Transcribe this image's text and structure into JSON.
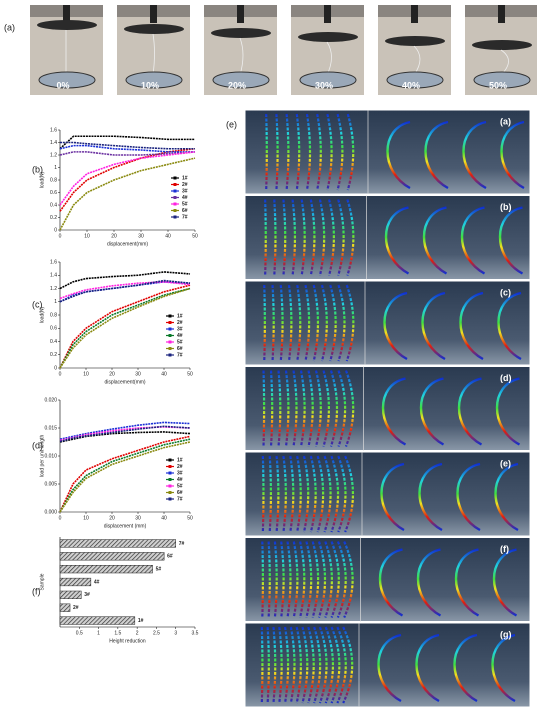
{
  "photos": {
    "label": "(a)",
    "captions": [
      "0%",
      "10%",
      "20%",
      "30%",
      "40%",
      "50%"
    ]
  },
  "simulation": {
    "label": "(e)",
    "panels": [
      "(a)",
      "(b)",
      "(c)",
      "(d)",
      "(e)",
      "(f)",
      "(g)"
    ]
  },
  "chart_data": [
    {
      "type": "line",
      "label": "(b)",
      "xlabel": "displacement(mm)",
      "ylabel": "load(N)",
      "x": [
        0,
        5,
        10,
        20,
        30,
        40,
        50
      ],
      "xlim": [
        0,
        50
      ],
      "ylim": [
        0,
        1.6
      ],
      "xticks": [
        0,
        10,
        20,
        30,
        40,
        50
      ],
      "yticks": [
        0,
        0.2,
        0.4,
        0.6,
        0.8,
        1,
        1.2,
        1.4,
        1.6
      ],
      "series": [
        {
          "name": "1#",
          "color": "#000000",
          "values": [
            1.3,
            1.5,
            1.5,
            1.5,
            1.48,
            1.45,
            1.45
          ]
        },
        {
          "name": "2#",
          "color": "#e00000",
          "values": [
            0.3,
            0.6,
            0.8,
            1.0,
            1.15,
            1.25,
            1.3
          ]
        },
        {
          "name": "3#",
          "color": "#1a2fd6",
          "values": [
            1.3,
            1.35,
            1.35,
            1.3,
            1.28,
            1.25,
            1.25
          ]
        },
        {
          "name": "4#",
          "color": "#6a2fa0",
          "values": [
            1.2,
            1.25,
            1.25,
            1.2,
            1.2,
            1.22,
            1.25
          ]
        },
        {
          "name": "5#",
          "color": "#ff20e0",
          "values": [
            0.4,
            0.7,
            0.9,
            1.05,
            1.15,
            1.2,
            1.25
          ]
        },
        {
          "name": "6#",
          "color": "#8a8a10",
          "values": [
            0.0,
            0.4,
            0.6,
            0.8,
            0.95,
            1.05,
            1.15
          ]
        },
        {
          "name": "7#",
          "color": "#1a237e",
          "values": [
            1.4,
            1.4,
            1.38,
            1.35,
            1.32,
            1.3,
            1.3
          ]
        }
      ]
    },
    {
      "type": "line",
      "label": "(c)",
      "xlabel": "displacement(mm)",
      "ylabel": "load(N)",
      "x": [
        0,
        5,
        10,
        20,
        30,
        40,
        50
      ],
      "xlim": [
        0,
        50
      ],
      "ylim": [
        0,
        1.6
      ],
      "xticks": [
        0,
        10,
        20,
        30,
        40,
        50
      ],
      "yticks": [
        0,
        0.2,
        0.4,
        0.6,
        0.8,
        1,
        1.2,
        1.4,
        1.6
      ],
      "series": [
        {
          "name": "1#",
          "color": "#000000",
          "values": [
            1.2,
            1.3,
            1.35,
            1.38,
            1.4,
            1.45,
            1.42
          ]
        },
        {
          "name": "2#",
          "color": "#e00000",
          "values": [
            0,
            0.4,
            0.6,
            0.85,
            1.0,
            1.15,
            1.25
          ]
        },
        {
          "name": "3#",
          "color": "#1a2fd6",
          "values": [
            1.0,
            1.1,
            1.15,
            1.2,
            1.25,
            1.3,
            1.28
          ]
        },
        {
          "name": "4#",
          "color": "#0a7a2a",
          "values": [
            0,
            0.35,
            0.55,
            0.8,
            0.95,
            1.1,
            1.2
          ]
        },
        {
          "name": "5#",
          "color": "#ff20e0",
          "values": [
            1.05,
            1.12,
            1.18,
            1.24,
            1.28,
            1.3,
            1.26
          ]
        },
        {
          "name": "6#",
          "color": "#8a8a10",
          "values": [
            0,
            0.3,
            0.5,
            0.75,
            0.92,
            1.08,
            1.2
          ]
        },
        {
          "name": "7#",
          "color": "#1a237e",
          "values": [
            1.0,
            1.08,
            1.15,
            1.2,
            1.25,
            1.32,
            1.28
          ]
        }
      ]
    },
    {
      "type": "line",
      "label": "(d)",
      "xlabel": "displacement (mm)",
      "ylabel": "load per unit length",
      "x": [
        0,
        5,
        10,
        20,
        30,
        40,
        50
      ],
      "xlim": [
        0,
        50
      ],
      "ylim": [
        0,
        0.02
      ],
      "xticks": [
        0,
        10,
        20,
        30,
        40,
        50
      ],
      "yticks": [
        {
          "value": 0,
          "label": "0.000"
        },
        {
          "value": 0.005,
          "label": "0.005"
        },
        {
          "value": 0.01,
          "label": "0.010"
        },
        {
          "value": 0.015,
          "label": "0.015"
        },
        {
          "value": 0.02,
          "label": "0.020"
        }
      ],
      "series": [
        {
          "name": "1#",
          "color": "#000000",
          "values": [
            0.0125,
            0.013,
            0.0135,
            0.014,
            0.0142,
            0.0143,
            0.014
          ]
        },
        {
          "name": "2#",
          "color": "#e00000",
          "values": [
            0,
            0.005,
            0.0075,
            0.0095,
            0.011,
            0.0125,
            0.0135
          ]
        },
        {
          "name": "3#",
          "color": "#1a2fd6",
          "values": [
            0.013,
            0.0135,
            0.014,
            0.0148,
            0.0155,
            0.016,
            0.0158
          ]
        },
        {
          "name": "4#",
          "color": "#0a7a2a",
          "values": [
            0,
            0.004,
            0.0065,
            0.009,
            0.0105,
            0.012,
            0.013
          ]
        },
        {
          "name": "5#",
          "color": "#ff20e0",
          "values": [
            0.0128,
            0.0133,
            0.0138,
            0.0145,
            0.015,
            0.0152,
            0.015
          ]
        },
        {
          "name": "6#",
          "color": "#8a8a10",
          "values": [
            0,
            0.0035,
            0.006,
            0.0085,
            0.01,
            0.0115,
            0.0125
          ]
        },
        {
          "name": "7#",
          "color": "#1a237e",
          "values": [
            0.0126,
            0.0132,
            0.0136,
            0.0142,
            0.0148,
            0.0153,
            0.015
          ]
        }
      ]
    },
    {
      "type": "bar",
      "label": "(f)",
      "xlabel": "Height reduction",
      "ylabel": "Sample",
      "categories": [
        "7#",
        "6#",
        "5#",
        "4#",
        "3#",
        "2#",
        "1#"
      ],
      "values": [
        3.0,
        2.7,
        2.4,
        0.8,
        0.55,
        0.26,
        1.94
      ],
      "color": "#777777",
      "xlim": [
        0,
        3.5
      ],
      "xticks": [
        0.5,
        1.0,
        1.5,
        2.0,
        2.5,
        3.0,
        3.5
      ]
    }
  ]
}
